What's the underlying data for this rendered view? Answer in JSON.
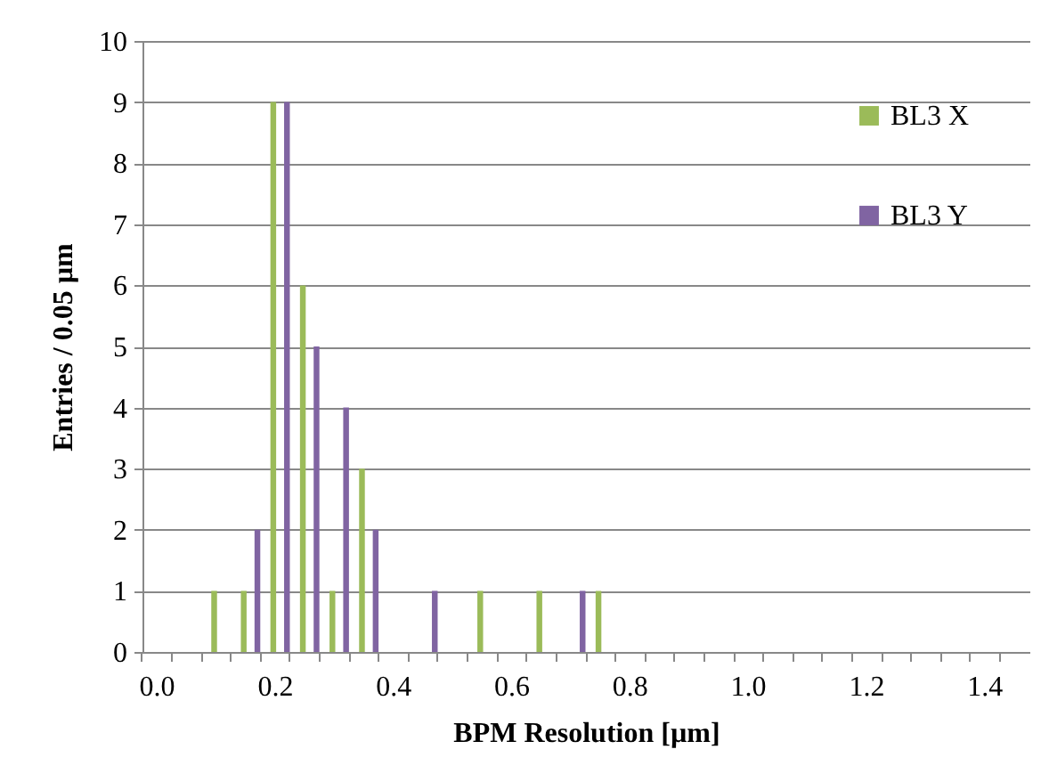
{
  "chart_data": {
    "type": "bar",
    "xlabel": "BPM Resolution [µm]",
    "ylabel": "Entries / 0.05 µm",
    "categories": [
      "0.0",
      null,
      null,
      null,
      "0.2",
      null,
      null,
      null,
      "0.4",
      null,
      null,
      null,
      "0.6",
      null,
      null,
      null,
      "0.8",
      null,
      null,
      null,
      "1.0",
      null,
      null,
      null,
      "1.2",
      null,
      null,
      null,
      "1.4",
      null
    ],
    "series": [
      {
        "name": "BL3 X",
        "color": "#9bbb59",
        "values": [
          0,
          0,
          1,
          1,
          9,
          6,
          1,
          3,
          0,
          0,
          0,
          1,
          0,
          1,
          0,
          1,
          0,
          0,
          0,
          0,
          0,
          0,
          0,
          0,
          0,
          0,
          0,
          0,
          0,
          0
        ]
      },
      {
        "name": "BL3 Y",
        "color": "#8064a2",
        "values": [
          0,
          0,
          0,
          2,
          9,
          5,
          4,
          2,
          0,
          1,
          0,
          0,
          0,
          0,
          1,
          0,
          0,
          0,
          0,
          0,
          0,
          0,
          0,
          0,
          0,
          0,
          0,
          0,
          0,
          0
        ]
      }
    ],
    "ylim": [
      0,
      10
    ],
    "yticks": [
      0,
      1,
      2,
      3,
      4,
      5,
      6,
      7,
      8,
      9,
      10
    ],
    "grid": "y",
    "legend": "right"
  }
}
